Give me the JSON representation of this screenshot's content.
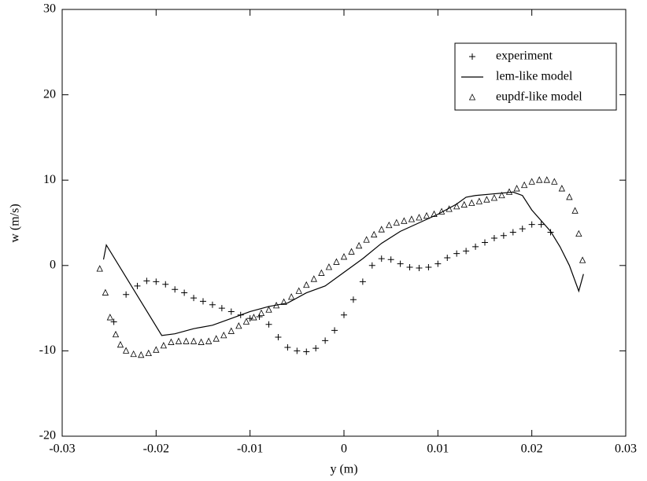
{
  "chart_data": {
    "type": "line",
    "x_label": "y (m)",
    "y_label": "w (m/s)",
    "xlim": [
      -0.03,
      0.03
    ],
    "xticks": [
      -0.03,
      -0.02,
      -0.01,
      0,
      0.01,
      0.02,
      0.03
    ],
    "ylim": [
      -20,
      30
    ],
    "yticks": [
      -20,
      -10,
      0,
      10,
      20,
      30
    ],
    "grid": false,
    "legend": "upper right",
    "series": [
      {
        "name": "experiment",
        "color": "#000000",
        "style": "plus",
        "x": [
          -0.0245,
          -0.0232,
          -0.022,
          -0.021,
          -0.02,
          -0.019,
          -0.018,
          -0.017,
          -0.016,
          -0.015,
          -0.014,
          -0.013,
          -0.012,
          -0.011,
          -0.01,
          -0.009,
          -0.008,
          -0.007,
          -0.006,
          -0.005,
          -0.004,
          -0.003,
          -0.002,
          -0.001,
          0,
          0.001,
          0.002,
          0.003,
          0.004,
          0.005,
          0.006,
          0.007,
          0.008,
          0.009,
          0.01,
          0.011,
          0.012,
          0.013,
          0.014,
          0.015,
          0.016,
          0.017,
          0.018,
          0.019,
          0.02,
          0.021,
          0.022
        ],
        "values": [
          -6.6,
          -3.4,
          -2.4,
          -1.8,
          -1.9,
          -2.2,
          -2.8,
          -3.2,
          -3.8,
          -4.2,
          -4.6,
          -5.0,
          -5.4,
          -5.8,
          -6.2,
          -6.0,
          -6.9,
          -8.4,
          -9.6,
          -10.0,
          -10.1,
          -9.7,
          -8.8,
          -7.6,
          -5.8,
          -4.0,
          -1.9,
          0.0,
          0.8,
          0.7,
          0.2,
          -0.2,
          -0.3,
          -0.2,
          0.2,
          0.9,
          1.4,
          1.7,
          2.2,
          2.7,
          3.2,
          3.5,
          3.9,
          4.3,
          4.8,
          4.8,
          3.9
        ]
      },
      {
        "name": "lem-like model",
        "color": "#000000",
        "style": "line",
        "x": [
          -0.0256,
          -0.0253,
          -0.0194,
          -0.018,
          -0.016,
          -0.014,
          -0.012,
          -0.01,
          -0.008,
          -0.006,
          -0.004,
          -0.002,
          0,
          0.002,
          0.004,
          0.006,
          0.008,
          0.01,
          0.012,
          0.013,
          0.014,
          0.016,
          0.018,
          0.019,
          0.02,
          0.022,
          0.023,
          0.024,
          0.025,
          0.0255
        ],
        "values": [
          0.7,
          2.4,
          -8.2,
          -8.0,
          -7.4,
          -7.0,
          -6.2,
          -5.4,
          -4.8,
          -4.4,
          -3.2,
          -2.4,
          -0.8,
          0.8,
          2.6,
          4.0,
          5.0,
          6.0,
          7.2,
          8.0,
          8.2,
          8.4,
          8.6,
          8.2,
          6.5,
          4.0,
          2.2,
          0.0,
          -3.0,
          -1.0
        ]
      },
      {
        "name": "eupdf-like model",
        "color": "#000000",
        "style": "triangle",
        "x": [
          -0.026,
          -0.0254,
          -0.0249,
          -0.0243,
          -0.0238,
          -0.0232,
          -0.0224,
          -0.0216,
          -0.0208,
          -0.02,
          -0.0192,
          -0.0184,
          -0.0176,
          -0.0168,
          -0.016,
          -0.0152,
          -0.0144,
          -0.0136,
          -0.0128,
          -0.012,
          -0.0112,
          -0.0104,
          -0.0096,
          -0.0088,
          -0.008,
          -0.0072,
          -0.0064,
          -0.0056,
          -0.0048,
          -0.004,
          -0.0032,
          -0.0024,
          -0.0016,
          -0.0008,
          0,
          0.0008,
          0.0016,
          0.0024,
          0.0032,
          0.004,
          0.0048,
          0.0056,
          0.0064,
          0.0072,
          0.008,
          0.0088,
          0.0096,
          0.0104,
          0.0112,
          0.012,
          0.0128,
          0.0136,
          0.0144,
          0.0152,
          0.016,
          0.0168,
          0.0176,
          0.0184,
          0.0192,
          0.02,
          0.0208,
          0.0216,
          0.0224,
          0.0232,
          0.024,
          0.0246,
          0.025,
          0.0254
        ],
        "values": [
          -0.4,
          -3.2,
          -6.1,
          -8.1,
          -9.3,
          -10.0,
          -10.4,
          -10.5,
          -10.3,
          -9.9,
          -9.4,
          -9.0,
          -8.9,
          -8.9,
          -8.9,
          -9.0,
          -8.9,
          -8.6,
          -8.2,
          -7.7,
          -7.1,
          -6.6,
          -6.1,
          -5.6,
          -5.2,
          -4.7,
          -4.3,
          -3.7,
          -3.0,
          -2.3,
          -1.6,
          -0.9,
          -0.2,
          0.4,
          1.0,
          1.6,
          2.3,
          3.0,
          3.6,
          4.2,
          4.7,
          5.0,
          5.2,
          5.4,
          5.6,
          5.8,
          6.0,
          6.3,
          6.6,
          6.9,
          7.1,
          7.3,
          7.5,
          7.7,
          7.9,
          8.2,
          8.6,
          9.0,
          9.4,
          9.8,
          10.0,
          10.0,
          9.8,
          9.0,
          8.0,
          6.4,
          3.7,
          0.6
        ]
      }
    ]
  }
}
